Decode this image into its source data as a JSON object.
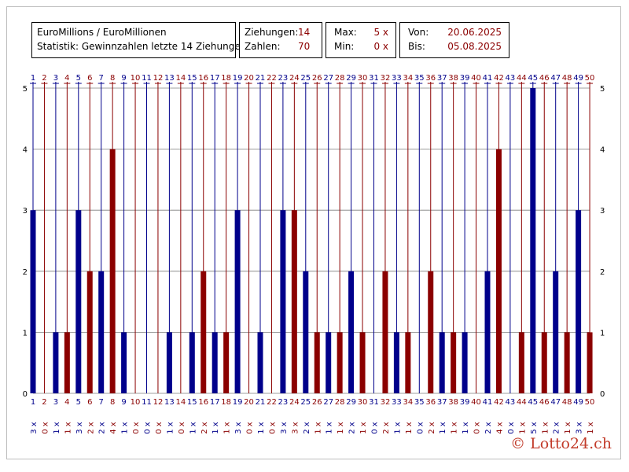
{
  "header": {
    "title": "EuroMillions / EuroMillionen",
    "subtitle": "Statistik: Gewinnzahlen letzte 14 Ziehungen"
  },
  "stats": {
    "ziehungen_label": "Ziehungen:",
    "ziehungen_value": "14",
    "zahlen_label": "Zahlen:",
    "zahlen_value": "70",
    "max_label": "Max:",
    "max_value": "5 x",
    "min_label": "Min:",
    "min_value": "0 x",
    "von_label": "Von:",
    "von_value": "20.06.2025",
    "bis_label": "Bis:",
    "bis_value": "05.08.2025"
  },
  "copyright": "© Lotto24.ch",
  "colors": {
    "blue": "#00008b",
    "red": "#8b0000",
    "grid": "#7f7f7f",
    "copyright": "#c23b2a"
  },
  "chart_data": {
    "type": "bar",
    "title": "Statistik: Gewinnzahlen letzte 14 Ziehungen",
    "categories": [
      "1",
      "2",
      "3",
      "4",
      "5",
      "6",
      "7",
      "8",
      "9",
      "10",
      "11",
      "12",
      "13",
      "14",
      "15",
      "16",
      "17",
      "18",
      "19",
      "20",
      "21",
      "22",
      "23",
      "24",
      "25",
      "26",
      "27",
      "28",
      "29",
      "30",
      "31",
      "32",
      "33",
      "34",
      "35",
      "36",
      "37",
      "38",
      "39",
      "40",
      "41",
      "42",
      "43",
      "44",
      "45",
      "46",
      "47",
      "48",
      "49",
      "50"
    ],
    "values": [
      3,
      0,
      1,
      1,
      3,
      2,
      2,
      4,
      1,
      0,
      0,
      0,
      1,
      0,
      1,
      2,
      1,
      1,
      3,
      0,
      1,
      0,
      3,
      3,
      2,
      1,
      1,
      1,
      2,
      1,
      0,
      2,
      1,
      1,
      0,
      2,
      1,
      1,
      1,
      0,
      2,
      4,
      0,
      1,
      5,
      1,
      2,
      1,
      3,
      1
    ],
    "count_labels": [
      "3 x",
      "0 x",
      "1 x",
      "1 x",
      "3 x",
      "2 x",
      "2 x",
      "4 x",
      "1 x",
      "0 x",
      "0 x",
      "0 x",
      "1 x",
      "0 x",
      "1 x",
      "2 x",
      "1 x",
      "1 x",
      "3 x",
      "0 x",
      "1 x",
      "0 x",
      "3 x",
      "3 x",
      "2 x",
      "1 x",
      "1 x",
      "1 x",
      "2 x",
      "1 x",
      "0 x",
      "2 x",
      "1 x",
      "1 x",
      "0 x",
      "2 x",
      "1 x",
      "1 x",
      "1 x",
      "0 x",
      "2 x",
      "4 x",
      "0 x",
      "1 x",
      "5 x",
      "1 x",
      "2 x",
      "1 x",
      "3 x",
      "1 x"
    ],
    "colors_alternate": [
      "#00008b",
      "#8b0000"
    ],
    "ylim": [
      0,
      5
    ],
    "yticks": [
      "0",
      "1",
      "2",
      "3",
      "4",
      "5"
    ],
    "grid": true,
    "xlabel": "",
    "ylabel": ""
  }
}
